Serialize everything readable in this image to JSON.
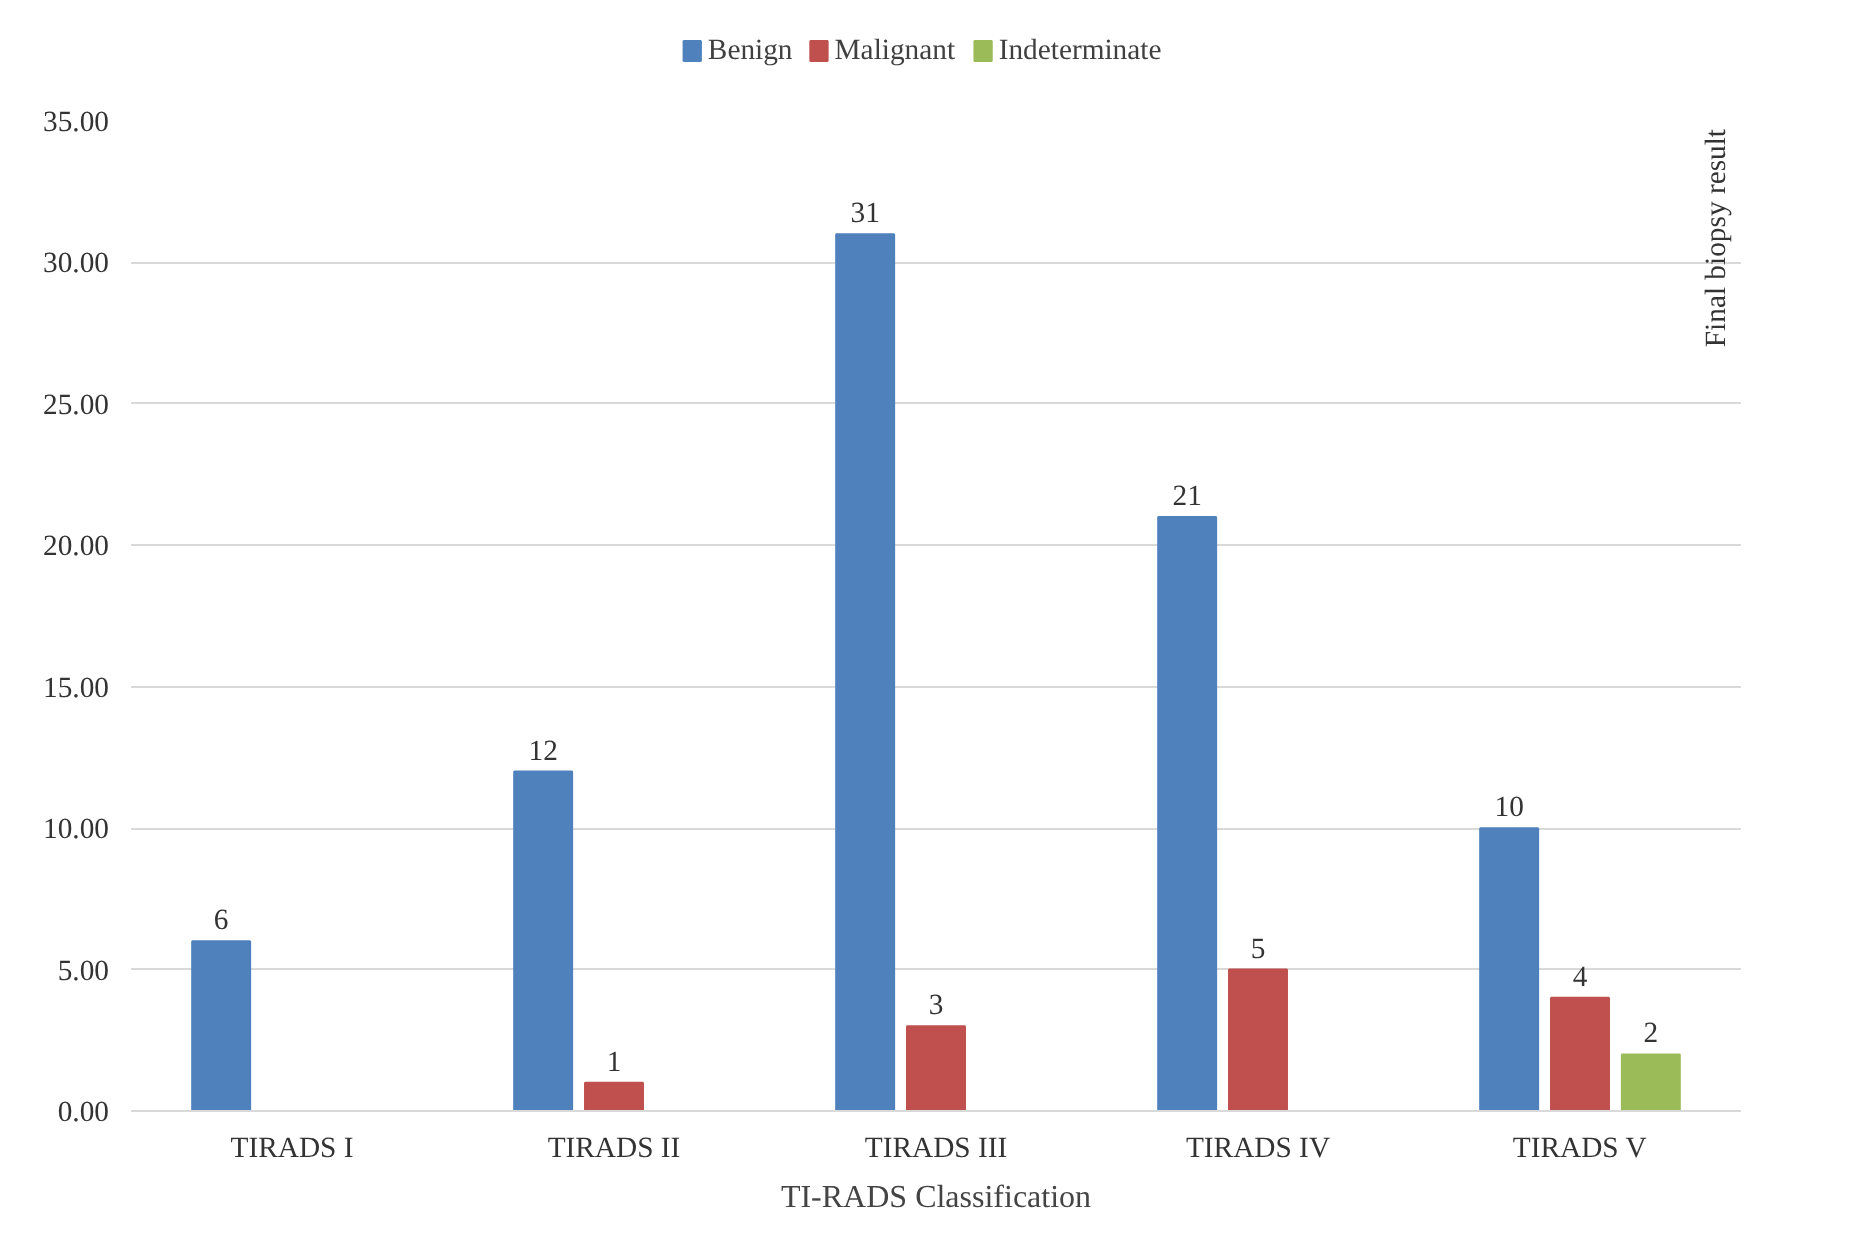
{
  "chart_data": {
    "type": "bar",
    "xlabel": "TI-RADS Classification",
    "categories": [
      "TIRADS I",
      "TIRADS II",
      "TIRADS III",
      "TIRADS IV",
      "TIRADS V"
    ],
    "series": [
      {
        "name": "Benign",
        "color": "#4f81bd",
        "values": [
          6,
          12,
          31,
          21,
          10
        ]
      },
      {
        "name": "Malignant",
        "color": "#c0504d",
        "values": [
          null,
          1,
          3,
          5,
          4
        ]
      },
      {
        "name": "Indeterminate",
        "color": "#9bbb59",
        "values": [
          null,
          null,
          null,
          null,
          2
        ]
      }
    ],
    "ylim": [
      0,
      35
    ],
    "yticks": [
      {
        "value": 0,
        "label": "0.00"
      },
      {
        "value": 5,
        "label": "5.00"
      },
      {
        "value": 10,
        "label": "10.00"
      },
      {
        "value": 15,
        "label": "15.00"
      },
      {
        "value": 20,
        "label": "20.00"
      },
      {
        "value": 25,
        "label": "25.00"
      },
      {
        "value": 30,
        "label": "30.00"
      },
      {
        "value": 35,
        "label": "35.00"
      }
    ],
    "grid": "y",
    "legend": "top",
    "data_labels": true,
    "annotations": [
      "Final biopsy result"
    ]
  }
}
